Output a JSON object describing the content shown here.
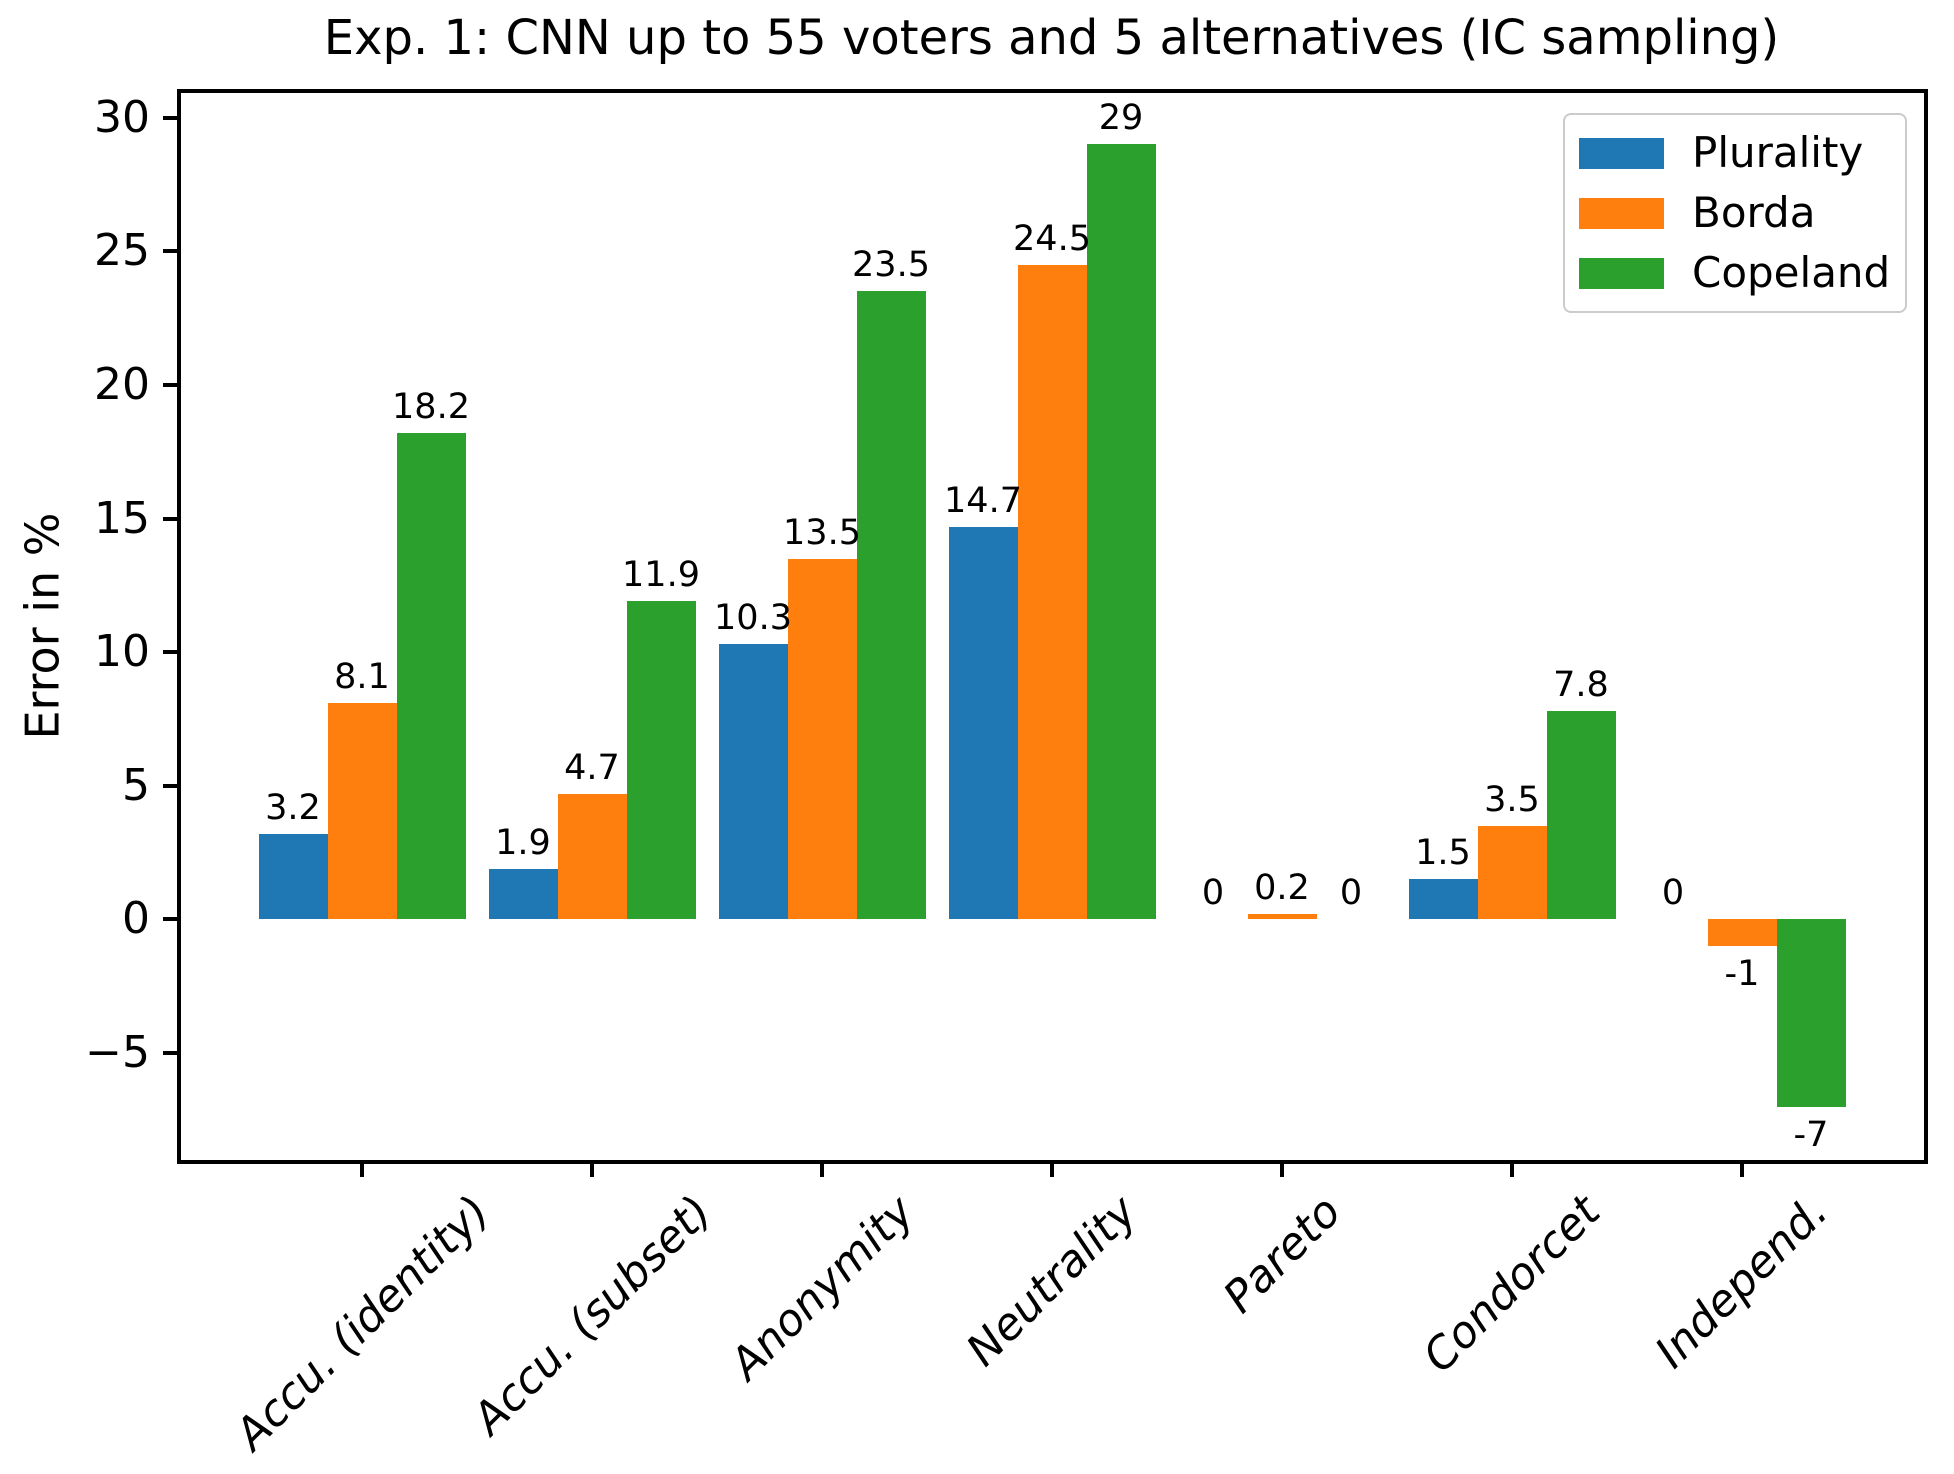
{
  "chart_data": {
    "type": "bar",
    "title": "Exp. 1: CNN up to 55 voters and 5 alternatives (IC sampling)",
    "xlabel": "",
    "ylabel": "Error in %",
    "categories": [
      "Accu. (identity)",
      "Accu. (subset)",
      "Anonymity",
      "Neutrality",
      "Pareto",
      "Condorcet",
      "Independ."
    ],
    "series": [
      {
        "name": "Plurality",
        "color": "#1f77b4",
        "values": [
          3.2,
          1.9,
          10.3,
          14.7,
          0,
          1.5,
          0
        ]
      },
      {
        "name": "Borda",
        "color": "#ff7f0e",
        "values": [
          8.1,
          4.7,
          13.5,
          24.5,
          0.2,
          3.5,
          -1
        ]
      },
      {
        "name": "Copeland",
        "color": "#2ca02c",
        "values": [
          18.2,
          11.9,
          23.5,
          29,
          0,
          7.8,
          -7
        ]
      }
    ],
    "ylim": [
      -9,
      31
    ],
    "yticks": [
      -5,
      0,
      5,
      10,
      15,
      20,
      25,
      30
    ],
    "bar_labels": true,
    "grid": false,
    "legend_position": "upper right",
    "xtick_style": "italic, rotated 45deg",
    "spine_color": "#000000",
    "background_color": "#ffffff"
  }
}
